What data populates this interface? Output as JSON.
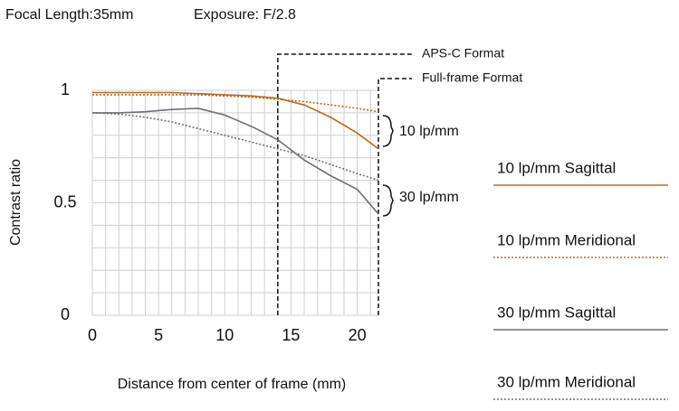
{
  "chart_data": {
    "type": "line",
    "title": "Focal Length:35mm",
    "subtitle": "Exposure: F/2.8",
    "x_label": "Distance from center of frame (mm)",
    "y_label": "Contrast ratio",
    "x": [
      0,
      2,
      4,
      6,
      8,
      10,
      12,
      14,
      16,
      18,
      20,
      21.6
    ],
    "series": [
      {
        "name": "10 lp/mm Sagittal",
        "color": "#b86a1e",
        "style": "solid",
        "values": [
          0.99,
          0.99,
          0.99,
          0.99,
          0.985,
          0.98,
          0.975,
          0.965,
          0.935,
          0.88,
          0.81,
          0.74
        ]
      },
      {
        "name": "10 lp/mm Meridional",
        "color": "#b86a1e",
        "style": "dotted",
        "values": [
          0.98,
          0.98,
          0.98,
          0.98,
          0.98,
          0.975,
          0.97,
          0.96,
          0.95,
          0.935,
          0.92,
          0.905
        ]
      },
      {
        "name": "30 lp/mm Sagittal",
        "color": "#707070",
        "style": "solid",
        "values": [
          0.9,
          0.9,
          0.905,
          0.915,
          0.92,
          0.89,
          0.84,
          0.78,
          0.69,
          0.62,
          0.56,
          0.45
        ]
      },
      {
        "name": "30 lp/mm Meridional",
        "color": "#707070",
        "style": "dotted",
        "values": [
          0.9,
          0.895,
          0.88,
          0.86,
          0.83,
          0.8,
          0.77,
          0.74,
          0.71,
          0.67,
          0.63,
          0.6
        ]
      }
    ],
    "xlim": [
      0,
      21.6
    ],
    "ylim": [
      0,
      1
    ],
    "xticks": [
      0,
      5,
      10,
      15,
      20
    ],
    "yticks": [
      0,
      0.5,
      1
    ],
    "xgrid": [
      0,
      1,
      2,
      3,
      4,
      5,
      6,
      7,
      8,
      9,
      10,
      11,
      12,
      13,
      14,
      15,
      16,
      17,
      18,
      19,
      20,
      21
    ],
    "ygrid": [
      0,
      0.1,
      0.2,
      0.3,
      0.4,
      0.5,
      0.6,
      0.7,
      0.8,
      0.9,
      1
    ],
    "format_lines": [
      {
        "label": "APS-C Format",
        "x": 14
      },
      {
        "label": "Full-frame Format",
        "x": 21.6
      }
    ],
    "group_labels": [
      "10 lp/mm",
      "30 lp/mm"
    ],
    "legend": "right"
  }
}
